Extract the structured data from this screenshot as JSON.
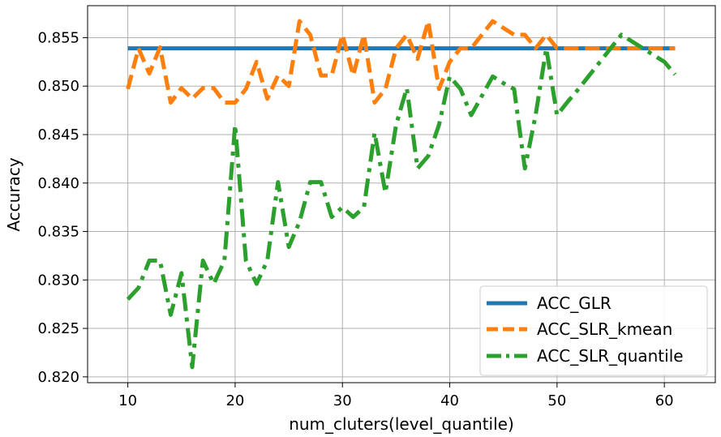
{
  "chart_data": {
    "type": "line",
    "xlabel": "num_cluters(level_quantile)",
    "ylabel": "Accuracy",
    "xlim": [
      6.25,
      64.75
    ],
    "ylim": [
      0.8194,
      0.8583
    ],
    "xticks": [
      10,
      20,
      30,
      40,
      50,
      60
    ],
    "yticks": [
      0.82,
      0.825,
      0.83,
      0.835,
      0.84,
      0.845,
      0.85,
      0.855
    ],
    "ytick_labels": [
      "0.820",
      "0.825",
      "0.830",
      "0.835",
      "0.840",
      "0.845",
      "0.850",
      "0.855"
    ],
    "grid": true,
    "legend_position": "lower-right",
    "x": [
      10,
      11,
      12,
      13,
      14,
      15,
      16,
      17,
      18,
      19,
      20,
      21,
      22,
      23,
      24,
      25,
      26,
      27,
      28,
      29,
      30,
      31,
      32,
      33,
      34,
      35,
      36,
      37,
      38,
      39,
      40,
      41,
      42,
      43,
      44,
      45,
      46,
      47,
      48,
      49,
      50,
      51,
      52,
      53,
      54,
      55,
      56,
      57,
      58,
      59,
      60,
      61
    ],
    "series": [
      {
        "name": "ACC_GLR",
        "color": "#1f77b4",
        "style": "solid",
        "values": [
          0.8539,
          0.8539,
          0.8539,
          0.8539,
          0.8539,
          0.8539,
          0.8539,
          0.8539,
          0.8539,
          0.8539,
          0.8539,
          0.8539,
          0.8539,
          0.8539,
          0.8539,
          0.8539,
          0.8539,
          0.8539,
          0.8539,
          0.8539,
          0.8539,
          0.8539,
          0.8539,
          0.8539,
          0.8539,
          0.8539,
          0.8539,
          0.8539,
          0.8539,
          0.8539,
          0.8539,
          0.8539,
          0.8539,
          0.8539,
          0.8539,
          0.8539,
          0.8539,
          0.8539,
          0.8539,
          0.8539,
          0.8539,
          0.8539,
          0.8539,
          0.8539,
          0.8539,
          0.8539,
          0.8539,
          0.8539,
          0.8539,
          0.8539,
          0.8539,
          0.8539
        ]
      },
      {
        "name": "ACC_SLR_kmean",
        "color": "#ff7f0e",
        "style": "dashed",
        "values": [
          0.8497,
          0.8539,
          0.8513,
          0.854,
          0.8483,
          0.8498,
          0.8487,
          0.8498,
          0.8498,
          0.8483,
          0.8483,
          0.8497,
          0.8525,
          0.8487,
          0.8511,
          0.85,
          0.8567,
          0.8553,
          0.8511,
          0.8511,
          0.8553,
          0.8511,
          0.8553,
          0.8483,
          0.8497,
          0.8539,
          0.8553,
          0.8528,
          0.8567,
          0.8497,
          0.8525,
          0.8539,
          0.8539,
          0.8553,
          0.8567,
          0.856,
          0.8553,
          0.8553,
          0.8539,
          0.8553,
          0.8539,
          0.8539,
          0.8539,
          0.8539,
          0.8539,
          0.8539,
          0.8539,
          0.8539,
          0.8539,
          0.8539,
          0.8539,
          0.8539
        ]
      },
      {
        "name": "ACC_SLR_quantile",
        "color": "#2ca02c",
        "style": "dashdot",
        "values": [
          0.828,
          0.8292,
          0.832,
          0.832,
          0.8264,
          0.8307,
          0.821,
          0.832,
          0.8296,
          0.832,
          0.846,
          0.832,
          0.8296,
          0.832,
          0.8401,
          0.8334,
          0.836,
          0.8401,
          0.8401,
          0.8365,
          0.8375,
          0.8365,
          0.8375,
          0.8452,
          0.839,
          0.846,
          0.8498,
          0.8415,
          0.8428,
          0.846,
          0.851,
          0.8497,
          0.847,
          0.849,
          0.851,
          0.8503,
          0.8497,
          0.8415,
          0.847,
          0.8539,
          0.847,
          0.8484,
          0.8497,
          0.8511,
          0.8525,
          0.8539,
          0.8553,
          0.8546,
          0.8539,
          0.8532,
          0.8525,
          0.8512
        ]
      }
    ]
  }
}
